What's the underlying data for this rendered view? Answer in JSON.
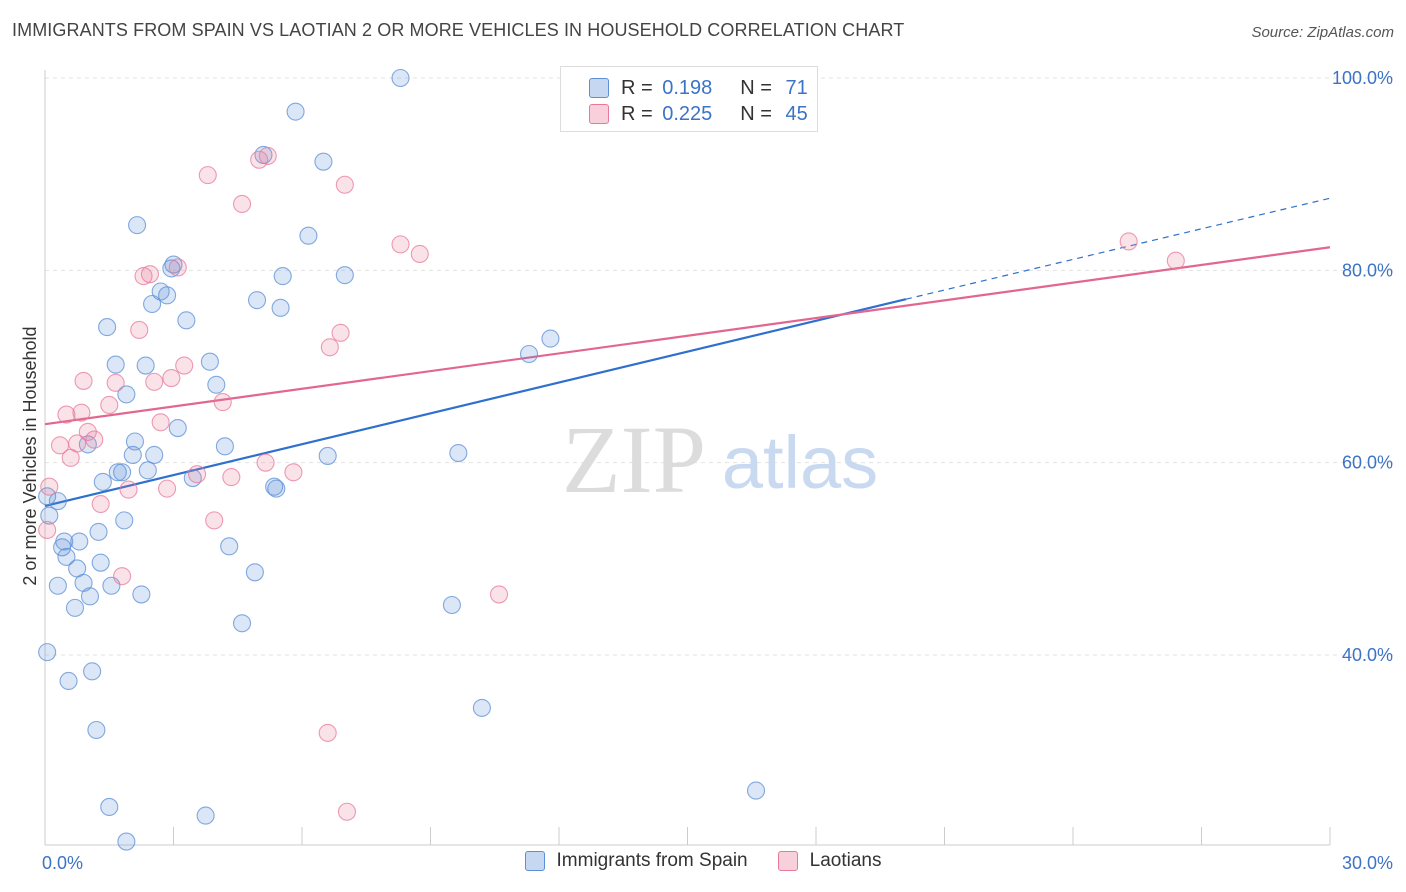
{
  "header": {
    "title": "IMMIGRANTS FROM SPAIN VS LAOTIAN 2 OR MORE VEHICLES IN HOUSEHOLD CORRELATION CHART",
    "source": "Source: ZipAtlas.com"
  },
  "watermark": {
    "zip": "ZIP",
    "atlas": "atlas"
  },
  "legend": {
    "rows": [
      {
        "r_label": "R =",
        "r_value": "0.198",
        "n_label": "N =",
        "n_value": "71",
        "color": "#5b8fd6"
      },
      {
        "r_label": "R =",
        "r_value": "0.225",
        "n_label": "N =",
        "n_value": "45",
        "color": "#e8799b"
      }
    ]
  },
  "bottom_legend": {
    "items": [
      {
        "label": "Immigrants from Spain",
        "color": "#5b8fd6"
      },
      {
        "label": "Laotians",
        "color": "#e8799b"
      }
    ]
  },
  "chart_data": {
    "type": "scatter",
    "title": "IMMIGRANTS FROM SPAIN VS LAOTIAN 2 OR MORE VEHICLES IN HOUSEHOLD CORRELATION CHART",
    "xlabel": "",
    "ylabel": "2 or more Vehicles in Household",
    "xlim": [
      0,
      30
    ],
    "ylim": [
      20,
      102
    ],
    "x_tick_labels": [
      "0.0%",
      "30.0%"
    ],
    "y_ticks": [
      40,
      60,
      80,
      100
    ],
    "y_tick_labels": [
      "40.0%",
      "60.0%",
      "80.0%",
      "100.0%"
    ],
    "grid": true,
    "legend_position": "top-center",
    "series": [
      {
        "name": "Immigrants from Spain",
        "color": "#5b8fd6",
        "trend": {
          "x": [
            0,
            20.1
          ],
          "y": [
            55.5,
            77.0
          ],
          "dashed_to": [
            30,
            87.5
          ]
        },
        "points": [
          [
            0.05,
            56.5
          ],
          [
            0.1,
            54.5
          ],
          [
            0.05,
            40.3
          ],
          [
            0.3,
            56.0
          ],
          [
            0.3,
            47.2
          ],
          [
            0.4,
            51.2
          ],
          [
            0.45,
            51.8
          ],
          [
            0.5,
            50.2
          ],
          [
            0.55,
            37.3
          ],
          [
            0.7,
            44.9
          ],
          [
            0.75,
            49.0
          ],
          [
            0.8,
            51.8
          ],
          [
            0.9,
            47.5
          ],
          [
            1.0,
            61.9
          ],
          [
            1.05,
            46.1
          ],
          [
            1.1,
            38.3
          ],
          [
            1.2,
            32.2
          ],
          [
            1.25,
            52.8
          ],
          [
            1.3,
            49.6
          ],
          [
            1.35,
            58.0
          ],
          [
            1.45,
            74.1
          ],
          [
            1.5,
            24.2
          ],
          [
            1.55,
            47.2
          ],
          [
            1.65,
            70.2
          ],
          [
            1.7,
            59.0
          ],
          [
            1.8,
            59.0
          ],
          [
            1.85,
            54.0
          ],
          [
            1.9,
            67.1
          ],
          [
            1.9,
            20.6
          ],
          [
            2.05,
            60.8
          ],
          [
            2.1,
            62.2
          ],
          [
            2.15,
            84.7
          ],
          [
            2.25,
            46.3
          ],
          [
            2.35,
            70.1
          ],
          [
            2.4,
            59.2
          ],
          [
            2.5,
            76.5
          ],
          [
            2.55,
            60.8
          ],
          [
            2.7,
            77.8
          ],
          [
            2.85,
            77.4
          ],
          [
            2.95,
            80.2
          ],
          [
            3.0,
            80.6
          ],
          [
            3.1,
            63.6
          ],
          [
            3.3,
            74.8
          ],
          [
            3.45,
            58.4
          ],
          [
            3.75,
            23.3
          ],
          [
            3.85,
            70.5
          ],
          [
            4.0,
            68.1
          ],
          [
            4.2,
            61.7
          ],
          [
            4.3,
            51.3
          ],
          [
            4.6,
            43.3
          ],
          [
            4.9,
            48.6
          ],
          [
            4.95,
            76.9
          ],
          [
            5.1,
            92.0
          ],
          [
            5.35,
            57.5
          ],
          [
            5.4,
            57.3
          ],
          [
            5.5,
            76.1
          ],
          [
            5.55,
            79.4
          ],
          [
            5.85,
            96.5
          ],
          [
            6.15,
            83.6
          ],
          [
            6.5,
            91.3
          ],
          [
            6.6,
            60.7
          ],
          [
            7.0,
            79.5
          ],
          [
            8.3,
            100.0
          ],
          [
            9.5,
            45.2
          ],
          [
            9.65,
            61.0
          ],
          [
            10.2,
            34.5
          ],
          [
            11.3,
            71.3
          ],
          [
            11.8,
            72.9
          ],
          [
            16.6,
            25.9
          ]
        ]
      },
      {
        "name": "Laotians",
        "color": "#e8799b",
        "trend": {
          "x": [
            0,
            30
          ],
          "y": [
            64.0,
            82.4
          ]
        },
        "points": [
          [
            0.05,
            53.0
          ],
          [
            0.1,
            57.5
          ],
          [
            0.35,
            61.8
          ],
          [
            0.5,
            65.0
          ],
          [
            0.6,
            60.5
          ],
          [
            0.75,
            62.0
          ],
          [
            0.85,
            65.2
          ],
          [
            0.9,
            68.5
          ],
          [
            1.0,
            63.2
          ],
          [
            1.15,
            62.4
          ],
          [
            1.3,
            55.7
          ],
          [
            1.5,
            66.0
          ],
          [
            1.65,
            68.3
          ],
          [
            1.8,
            48.2
          ],
          [
            1.95,
            57.2
          ],
          [
            2.2,
            73.8
          ],
          [
            2.3,
            79.4
          ],
          [
            2.45,
            79.6
          ],
          [
            2.55,
            68.4
          ],
          [
            2.7,
            64.2
          ],
          [
            2.85,
            57.3
          ],
          [
            2.95,
            68.8
          ],
          [
            3.1,
            80.3
          ],
          [
            3.25,
            70.1
          ],
          [
            3.55,
            58.8
          ],
          [
            3.8,
            89.9
          ],
          [
            3.95,
            54.0
          ],
          [
            4.15,
            66.3
          ],
          [
            4.35,
            58.5
          ],
          [
            4.6,
            86.9
          ],
          [
            5.0,
            91.5
          ],
          [
            5.2,
            91.9
          ],
          [
            5.15,
            60.0
          ],
          [
            5.8,
            59.0
          ],
          [
            6.6,
            31.9
          ],
          [
            6.65,
            72.0
          ],
          [
            6.9,
            73.5
          ],
          [
            7.0,
            88.9
          ],
          [
            7.05,
            23.7
          ],
          [
            8.3,
            82.7
          ],
          [
            8.75,
            81.7
          ],
          [
            10.6,
            46.3
          ],
          [
            25.3,
            83.0
          ],
          [
            26.4,
            81.0
          ]
        ]
      }
    ]
  }
}
